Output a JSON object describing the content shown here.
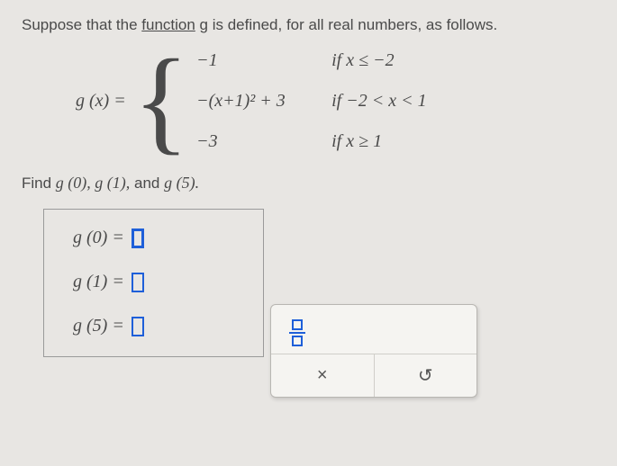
{
  "intro": {
    "prefix": "Suppose that the ",
    "link_word": "function",
    "suffix": " g is defined, for all real numbers, as follows."
  },
  "piecewise": {
    "lhs": "g (x) =",
    "cases": [
      {
        "expr": "−1",
        "cond": "if x ≤ −2"
      },
      {
        "expr": "−(x+1)² + 3",
        "cond": "if −2 < x < 1"
      },
      {
        "expr": "−3",
        "cond": "if x ≥ 1"
      }
    ]
  },
  "find": {
    "prefix": "Find ",
    "items": "g (0), g (1),",
    "and": " and ",
    "last": "g (5).",
    "suffix": ""
  },
  "answers": [
    {
      "label": "g (0) ="
    },
    {
      "label": "g (1) ="
    },
    {
      "label": "g (5) ="
    }
  ],
  "toolbar": {
    "fraction_tool": "fraction",
    "clear_symbol": "×",
    "reset_symbol": "↺"
  },
  "colors": {
    "background": "#e8e6e3",
    "text": "#4a4a4a",
    "accent": "#1e5fd9",
    "panel_bg": "#f5f4f1",
    "panel_border": "#b8b6b2"
  }
}
